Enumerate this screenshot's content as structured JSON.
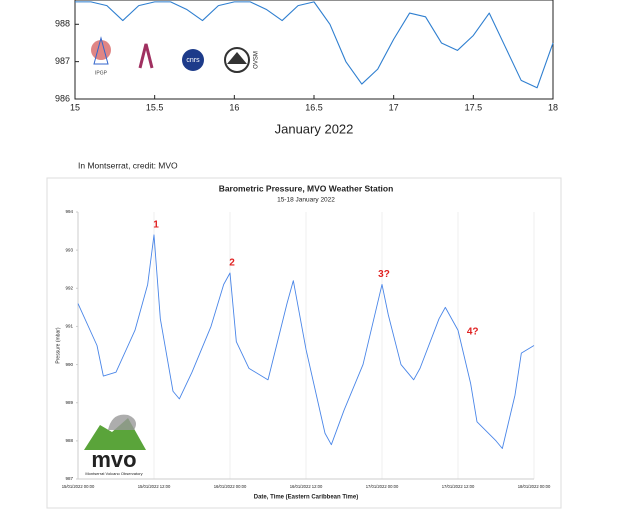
{
  "caption": "In Montserrat, credit: MVO",
  "logos": [
    "IPGP",
    "cnrs",
    "OVSM"
  ],
  "mvo_logo": {
    "name": "mvo",
    "text": "Montserrat Volcano Observatory"
  },
  "chart_data": [
    {
      "type": "line",
      "x_label": "January 2022",
      "x": [
        15.0,
        15.1,
        15.2,
        15.3,
        15.4,
        15.5,
        15.6,
        15.7,
        15.8,
        15.9,
        16.0,
        16.1,
        16.2,
        16.3,
        16.4,
        16.5,
        16.6,
        16.7,
        16.8,
        16.9,
        17.0,
        17.1,
        17.2,
        17.3,
        17.4,
        17.5,
        17.6,
        17.7,
        17.8,
        17.9,
        18.0
      ],
      "series": [
        {
          "name": "Pressure",
          "color": "#2f7fd0",
          "values": [
            988.6,
            988.6,
            988.5,
            988.1,
            988.5,
            988.6,
            988.6,
            988.4,
            988.1,
            988.5,
            988.6,
            988.6,
            988.4,
            988.1,
            988.5,
            988.6,
            988.0,
            987.0,
            986.4,
            986.8,
            987.6,
            988.3,
            988.2,
            987.5,
            987.3,
            987.7,
            988.3,
            987.4,
            986.5,
            986.3,
            987.5
          ]
        }
      ],
      "xlim": [
        15,
        18
      ],
      "xticks": [
        15,
        15.5,
        16,
        16.5,
        17,
        17.5,
        18
      ],
      "ylim": [
        986,
        988.65
      ],
      "yticks": [
        986,
        987,
        988
      ],
      "grid": false
    },
    {
      "type": "line",
      "title": "Barometric Pressure, MVO Weather Station",
      "subtitle": "15-18 January 2022",
      "x_label": "Date, Time (Eastern Caribbean Time)",
      "y_label": "Pressure (mbar)",
      "x": [
        "2022-01-15T00:00",
        "2022-01-15T03:00",
        "2022-01-15T04:00",
        "2022-01-15T06:00",
        "2022-01-15T09:00",
        "2022-01-15T11:00",
        "2022-01-15T12:00",
        "2022-01-15T13:00",
        "2022-01-15T15:00",
        "2022-01-15T16:00",
        "2022-01-15T18:00",
        "2022-01-15T21:00",
        "2022-01-15T23:00",
        "2022-01-16T00:00",
        "2022-01-16T01:00",
        "2022-01-16T03:00",
        "2022-01-16T06:00",
        "2022-01-16T09:00",
        "2022-01-16T10:00",
        "2022-01-16T12:00",
        "2022-01-16T15:00",
        "2022-01-16T16:00",
        "2022-01-16T18:00",
        "2022-01-16T21:00",
        "2022-01-17T00:00",
        "2022-01-17T01:00",
        "2022-01-17T03:00",
        "2022-01-17T05:00",
        "2022-01-17T06:00",
        "2022-01-17T09:00",
        "2022-01-17T10:00",
        "2022-01-17T12:00",
        "2022-01-17T14:00",
        "2022-01-17T15:00",
        "2022-01-17T18:00",
        "2022-01-17T19:00",
        "2022-01-17T21:00",
        "2022-01-17T22:00",
        "2022-01-18T00:00"
      ],
      "series": [
        {
          "name": "Pressure",
          "color": "#4a86e8",
          "values": [
            991.6,
            990.5,
            989.7,
            989.8,
            990.9,
            992.1,
            993.4,
            991.2,
            989.3,
            989.1,
            989.8,
            991.0,
            992.1,
            992.4,
            990.6,
            989.9,
            989.6,
            991.6,
            992.2,
            990.4,
            988.2,
            987.9,
            988.8,
            990.0,
            992.1,
            991.3,
            990.0,
            989.6,
            989.9,
            991.2,
            991.5,
            990.9,
            989.5,
            988.5,
            988.0,
            987.8,
            989.2,
            990.3,
            990.5
          ]
        }
      ],
      "xlim": [
        "2022-01-15T00:00",
        "2022-01-18T00:00"
      ],
      "xticks": [
        {
          "value": "2022-01-15T00:00",
          "label": "15/01/2022 00:00"
        },
        {
          "value": "2022-01-15T12:00",
          "label": "15/01/2022 12:00"
        },
        {
          "value": "2022-01-16T00:00",
          "label": "16/01/2022 00:00"
        },
        {
          "value": "2022-01-16T12:00",
          "label": "16/01/2022 12:00"
        },
        {
          "value": "2022-01-17T00:00",
          "label": "17/01/2022 00:00"
        },
        {
          "value": "2022-01-17T12:00",
          "label": "17/01/2022 12:00"
        },
        {
          "value": "2022-01-18T00:00",
          "label": "18/01/2022 00:00"
        }
      ],
      "ylim": [
        987,
        994
      ],
      "yticks": [
        987,
        988,
        989,
        990,
        991,
        992,
        993,
        994
      ],
      "grid": true,
      "annotations": [
        {
          "text": "1",
          "x": "2022-01-15T12:00",
          "y": 993.4
        },
        {
          "text": "2",
          "x": "2022-01-16T00:00",
          "y": 992.4
        },
        {
          "text": "3?",
          "x": "2022-01-17T00:00",
          "y": 992.1
        },
        {
          "text": "4?",
          "x": "2022-01-17T14:00",
          "y": 990.6
        }
      ]
    }
  ]
}
